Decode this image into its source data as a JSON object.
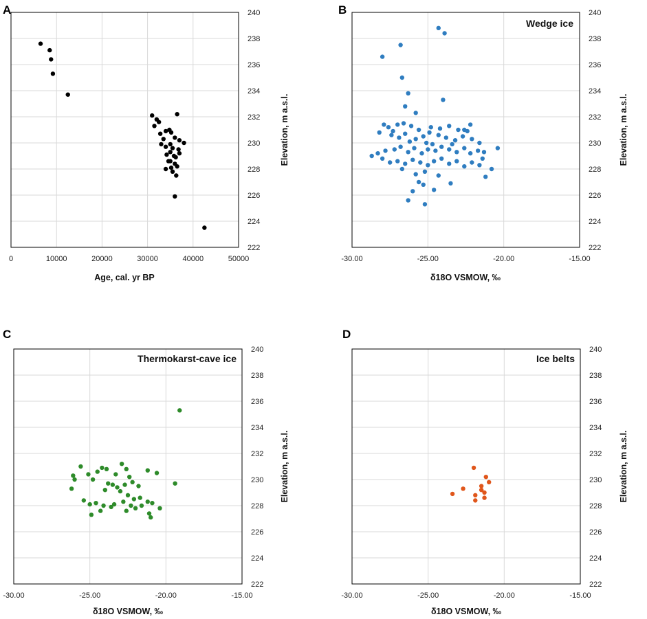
{
  "chart_data": [
    {
      "panel_label": "A",
      "type": "scatter",
      "title": "",
      "xlabel": "Age, cal. yr BP",
      "ylabel": "Elevation, m a.s.l.",
      "xlim": [
        0,
        50000
      ],
      "ylim": [
        222,
        240
      ],
      "xticks": [
        0,
        10000,
        20000,
        30000,
        40000,
        50000
      ],
      "xtick_labels": [
        "0",
        "10000",
        "20000",
        "30000",
        "40000",
        "50000"
      ],
      "yticks": [
        222,
        224,
        226,
        228,
        230,
        232,
        234,
        236,
        238,
        240
      ],
      "ytick_labels": [
        "222",
        "224",
        "226",
        "228",
        "230",
        "232",
        "234",
        "236",
        "238",
        "240"
      ],
      "color": "#000000",
      "points": [
        [
          6500,
          237.6
        ],
        [
          8500,
          237.1
        ],
        [
          8800,
          236.4
        ],
        [
          9200,
          235.3
        ],
        [
          12500,
          233.7
        ],
        [
          31000,
          232.1
        ],
        [
          32000,
          231.8
        ],
        [
          32500,
          231.6
        ],
        [
          31500,
          231.3
        ],
        [
          32800,
          230.7
        ],
        [
          33500,
          230.3
        ],
        [
          34000,
          230.9
        ],
        [
          34800,
          231.0
        ],
        [
          35200,
          230.8
        ],
        [
          36000,
          230.4
        ],
        [
          37000,
          230.2
        ],
        [
          38000,
          230.0
        ],
        [
          36500,
          232.2
        ],
        [
          33000,
          229.9
        ],
        [
          34000,
          229.7
        ],
        [
          35500,
          229.6
        ],
        [
          36800,
          229.5
        ],
        [
          35000,
          229.3
        ],
        [
          34200,
          229.1
        ],
        [
          35800,
          229.0
        ],
        [
          36200,
          228.9
        ],
        [
          35000,
          228.6
        ],
        [
          34600,
          228.6
        ],
        [
          36000,
          228.4
        ],
        [
          34000,
          228.0
        ],
        [
          35200,
          228.1
        ],
        [
          36500,
          228.2
        ],
        [
          35500,
          227.8
        ],
        [
          36300,
          227.5
        ],
        [
          36000,
          225.9
        ],
        [
          42500,
          223.5
        ],
        [
          37000,
          229.2
        ],
        [
          35000,
          229.9
        ]
      ]
    },
    {
      "panel_label": "B",
      "type": "scatter",
      "title": "Wedge ice",
      "xlabel": "δ18O VSMOW, ‰",
      "ylabel": "Elevation, m a.s.l.",
      "xlim": [
        -30,
        -15
      ],
      "ylim": [
        222,
        240
      ],
      "xticks": [
        -30,
        -25,
        -20,
        -15
      ],
      "xtick_labels": [
        "-30.00",
        "-25.00",
        "-20.00",
        "-15.00"
      ],
      "yticks": [
        222,
        224,
        226,
        228,
        230,
        232,
        234,
        236,
        238,
        240
      ],
      "ytick_labels": [
        "222",
        "224",
        "226",
        "228",
        "230",
        "232",
        "234",
        "236",
        "238",
        "240"
      ],
      "color": "#2f7dc0",
      "points": [
        [
          -24.3,
          238.8
        ],
        [
          -23.9,
          238.4
        ],
        [
          -26.8,
          237.5
        ],
        [
          -28.0,
          236.6
        ],
        [
          -26.7,
          235.0
        ],
        [
          -26.3,
          233.8
        ],
        [
          -24.0,
          233.3
        ],
        [
          -26.5,
          232.8
        ],
        [
          -25.8,
          232.3
        ],
        [
          -27.6,
          231.2
        ],
        [
          -27.0,
          231.4
        ],
        [
          -26.6,
          231.5
        ],
        [
          -26.1,
          231.3
        ],
        [
          -25.6,
          231.0
        ],
        [
          -24.8,
          231.2
        ],
        [
          -24.2,
          231.1
        ],
        [
          -23.6,
          231.3
        ],
        [
          -22.6,
          231.0
        ],
        [
          -22.2,
          231.4
        ],
        [
          -28.2,
          230.8
        ],
        [
          -27.4,
          230.6
        ],
        [
          -26.9,
          230.4
        ],
        [
          -26.5,
          230.7
        ],
        [
          -26.2,
          230.1
        ],
        [
          -25.8,
          230.3
        ],
        [
          -25.3,
          230.5
        ],
        [
          -24.9,
          230.8
        ],
        [
          -24.3,
          230.6
        ],
        [
          -23.8,
          230.4
        ],
        [
          -23.2,
          230.2
        ],
        [
          -22.7,
          230.5
        ],
        [
          -22.1,
          230.3
        ],
        [
          -21.6,
          230.0
        ],
        [
          -20.4,
          229.6
        ],
        [
          -28.7,
          229.0
        ],
        [
          -28.3,
          229.2
        ],
        [
          -27.8,
          229.4
        ],
        [
          -27.2,
          229.5
        ],
        [
          -26.8,
          229.7
        ],
        [
          -26.3,
          229.3
        ],
        [
          -25.9,
          229.6
        ],
        [
          -25.4,
          229.2
        ],
        [
          -25.0,
          229.5
        ],
        [
          -24.5,
          229.4
        ],
        [
          -24.1,
          229.7
        ],
        [
          -23.6,
          229.5
        ],
        [
          -23.1,
          229.3
        ],
        [
          -22.6,
          229.6
        ],
        [
          -22.2,
          229.2
        ],
        [
          -21.7,
          229.4
        ],
        [
          -21.3,
          229.3
        ],
        [
          -28.0,
          228.8
        ],
        [
          -27.5,
          228.5
        ],
        [
          -27.0,
          228.6
        ],
        [
          -26.5,
          228.4
        ],
        [
          -26.0,
          228.7
        ],
        [
          -25.5,
          228.5
        ],
        [
          -25.0,
          228.3
        ],
        [
          -24.6,
          228.6
        ],
        [
          -24.1,
          228.8
        ],
        [
          -23.6,
          228.4
        ],
        [
          -23.1,
          228.6
        ],
        [
          -22.6,
          228.2
        ],
        [
          -22.1,
          228.5
        ],
        [
          -21.6,
          228.3
        ],
        [
          -20.8,
          228.0
        ],
        [
          -26.7,
          228.0
        ],
        [
          -25.8,
          227.6
        ],
        [
          -25.2,
          227.8
        ],
        [
          -24.3,
          227.5
        ],
        [
          -23.5,
          226.9
        ],
        [
          -21.2,
          227.4
        ],
        [
          -25.6,
          227.0
        ],
        [
          -26.0,
          226.3
        ],
        [
          -24.6,
          226.4
        ],
        [
          -25.3,
          226.8
        ],
        [
          -26.3,
          225.6
        ],
        [
          -25.2,
          225.3
        ],
        [
          -27.3,
          230.9
        ],
        [
          -23.0,
          231.0
        ],
        [
          -22.4,
          230.9
        ],
        [
          -27.9,
          231.4
        ],
        [
          -25.1,
          230.0
        ],
        [
          -23.4,
          229.9
        ],
        [
          -24.7,
          229.9
        ],
        [
          -21.4,
          228.8
        ]
      ]
    },
    {
      "panel_label": "C",
      "type": "scatter",
      "title": "Thermokarst-cave ice",
      "xlabel": "δ18O VSMOW, ‰",
      "ylabel": "Elevation, m a.s.l.",
      "xlim": [
        -30,
        -15
      ],
      "ylim": [
        222,
        240
      ],
      "xticks": [
        -30,
        -25,
        -20,
        -15
      ],
      "xtick_labels": [
        "-30.00",
        "-25.00",
        "-20.00",
        "-15.00"
      ],
      "yticks": [
        222,
        224,
        226,
        228,
        230,
        232,
        234,
        236,
        238,
        240
      ],
      "ytick_labels": [
        "222",
        "224",
        "226",
        "228",
        "230",
        "232",
        "234",
        "236",
        "238",
        "240"
      ],
      "color": "#2e8b2a",
      "points": [
        [
          -19.1,
          235.3
        ],
        [
          -19.4,
          229.7
        ],
        [
          -25.6,
          231.0
        ],
        [
          -24.2,
          230.9
        ],
        [
          -23.9,
          230.8
        ],
        [
          -22.9,
          231.2
        ],
        [
          -22.6,
          230.8
        ],
        [
          -21.2,
          230.7
        ],
        [
          -20.6,
          230.5
        ],
        [
          -26.1,
          230.3
        ],
        [
          -26.0,
          230.0
        ],
        [
          -25.1,
          230.4
        ],
        [
          -24.5,
          230.6
        ],
        [
          -23.3,
          230.4
        ],
        [
          -22.4,
          230.2
        ],
        [
          -24.8,
          230.0
        ],
        [
          -23.5,
          229.6
        ],
        [
          -23.2,
          229.4
        ],
        [
          -22.7,
          229.6
        ],
        [
          -22.2,
          229.8
        ],
        [
          -21.8,
          229.5
        ],
        [
          -26.2,
          229.3
        ],
        [
          -24.0,
          229.2
        ],
        [
          -23.0,
          229.1
        ],
        [
          -22.5,
          228.8
        ],
        [
          -21.7,
          228.6
        ],
        [
          -21.2,
          228.3
        ],
        [
          -25.4,
          228.4
        ],
        [
          -24.6,
          228.2
        ],
        [
          -24.1,
          228.0
        ],
        [
          -23.4,
          228.1
        ],
        [
          -22.8,
          228.3
        ],
        [
          -22.1,
          228.5
        ],
        [
          -21.6,
          228.0
        ],
        [
          -20.9,
          228.2
        ],
        [
          -20.4,
          227.8
        ],
        [
          -25.0,
          228.1
        ],
        [
          -24.3,
          227.6
        ],
        [
          -22.6,
          227.6
        ],
        [
          -21.1,
          227.4
        ],
        [
          -23.6,
          227.9
        ],
        [
          -24.9,
          227.3
        ],
        [
          -21.0,
          227.1
        ],
        [
          -22.0,
          227.8
        ],
        [
          -22.3,
          228.0
        ],
        [
          -23.8,
          229.7
        ]
      ]
    },
    {
      "panel_label": "D",
      "type": "scatter",
      "title": "Ice belts",
      "xlabel": "δ18O VSMOW, ‰",
      "ylabel": "Elevation, m a.s.l.",
      "xlim": [
        -30,
        -15
      ],
      "ylim": [
        222,
        240
      ],
      "xticks": [
        -30,
        -25,
        -20,
        -15
      ],
      "xtick_labels": [
        "-30.00",
        "-25.00",
        "-20.00",
        "-15.00"
      ],
      "yticks": [
        222,
        224,
        226,
        228,
        230,
        232,
        234,
        236,
        238,
        240
      ],
      "ytick_labels": [
        "222",
        "224",
        "226",
        "228",
        "230",
        "232",
        "234",
        "236",
        "238",
        "240"
      ],
      "color": "#e0561b",
      "points": [
        [
          -22.0,
          230.9
        ],
        [
          -21.2,
          230.2
        ],
        [
          -21.0,
          229.8
        ],
        [
          -22.7,
          229.3
        ],
        [
          -23.4,
          228.9
        ],
        [
          -21.5,
          229.5
        ],
        [
          -21.3,
          229.0
        ],
        [
          -21.3,
          228.6
        ],
        [
          -21.9,
          228.8
        ],
        [
          -21.9,
          228.4
        ],
        [
          -21.5,
          229.2
        ]
      ]
    }
  ]
}
